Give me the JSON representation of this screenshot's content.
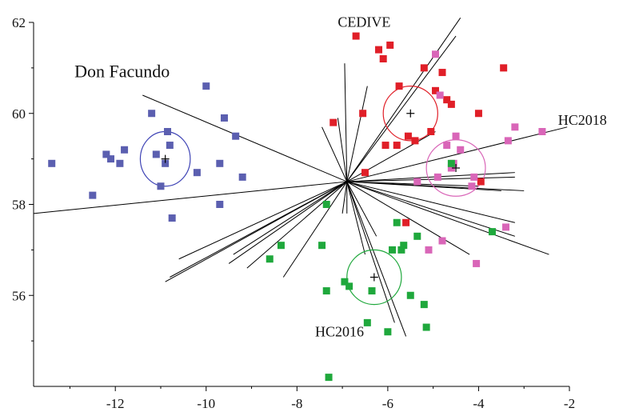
{
  "chart_data": {
    "type": "scatter",
    "title": "",
    "xlabel": "",
    "ylabel": "",
    "xlim": [
      -13.8,
      -2
    ],
    "ylim": [
      54,
      62
    ],
    "x_ticks": [
      -12,
      -10,
      -8,
      -6,
      -4,
      -2
    ],
    "y_ticks": [
      56,
      58,
      60,
      62
    ],
    "grid": false,
    "centroid": {
      "x": -6.9,
      "y": 58.5
    },
    "series": [
      {
        "label": "Don Facundo",
        "color": "#5b5fb0",
        "ellipse_color": "#3e43b5",
        "mean": {
          "x": -10.9,
          "y": 59.0
        },
        "radius": [
          0.55,
          0.6
        ],
        "label_pos": {
          "x": -12.9,
          "y": 60.8
        },
        "label_size": 22,
        "points": [
          [
            -13.4,
            58.9
          ],
          [
            -12.5,
            58.2
          ],
          [
            -12.2,
            59.1
          ],
          [
            -12.1,
            59.0
          ],
          [
            -11.9,
            58.9
          ],
          [
            -11.8,
            59.2
          ],
          [
            -11.2,
            60.0
          ],
          [
            -11.1,
            59.1
          ],
          [
            -11.0,
            58.4
          ],
          [
            -10.9,
            58.9
          ],
          [
            -10.85,
            59.6
          ],
          [
            -10.8,
            59.3
          ],
          [
            -10.75,
            57.7
          ],
          [
            -10.2,
            58.7
          ],
          [
            -10.0,
            60.6
          ],
          [
            -9.7,
            58.0
          ],
          [
            -9.7,
            58.9
          ],
          [
            -9.6,
            59.9
          ],
          [
            -9.35,
            59.5
          ],
          [
            -9.2,
            58.6
          ]
        ]
      },
      {
        "label": "CEDIVE",
        "color": "#e01f28",
        "ellipse_color": "#e01f28",
        "mean": {
          "x": -5.5,
          "y": 60.0
        },
        "radius": [
          0.6,
          0.6
        ],
        "label_pos": {
          "x": -7.1,
          "y": 61.9
        },
        "label_size": 18,
        "points": [
          [
            -7.2,
            59.8
          ],
          [
            -6.7,
            61.7
          ],
          [
            -6.55,
            60.0
          ],
          [
            -6.5,
            58.7
          ],
          [
            -6.2,
            61.4
          ],
          [
            -6.1,
            61.2
          ],
          [
            -6.05,
            59.3
          ],
          [
            -5.95,
            61.5
          ],
          [
            -5.8,
            59.3
          ],
          [
            -5.75,
            60.6
          ],
          [
            -5.55,
            59.5
          ],
          [
            -5.4,
            59.4
          ],
          [
            -5.2,
            61.0
          ],
          [
            -5.05,
            59.6
          ],
          [
            -4.95,
            60.5
          ],
          [
            -4.8,
            60.9
          ],
          [
            -4.7,
            60.3
          ],
          [
            -4.6,
            60.2
          ],
          [
            -4.0,
            60.0
          ],
          [
            -3.95,
            58.5
          ],
          [
            -3.45,
            61.0
          ],
          [
            -5.6,
            57.6
          ]
        ]
      },
      {
        "label": "HC2018",
        "color": "#d966b8",
        "ellipse_color": "#d966b8",
        "mean": {
          "x": -4.5,
          "y": 58.8
        },
        "radius": [
          0.65,
          0.62
        ],
        "label_pos": {
          "x": -2.25,
          "y": 59.75
        },
        "label_size": 18,
        "points": [
          [
            -5.35,
            58.5
          ],
          [
            -5.1,
            57.0
          ],
          [
            -4.95,
            61.3
          ],
          [
            -4.9,
            58.6
          ],
          [
            -4.85,
            60.4
          ],
          [
            -4.8,
            57.2
          ],
          [
            -4.7,
            59.3
          ],
          [
            -4.6,
            58.8
          ],
          [
            -4.55,
            58.9
          ],
          [
            -4.5,
            59.5
          ],
          [
            -4.4,
            59.2
          ],
          [
            -4.15,
            58.4
          ],
          [
            -4.1,
            58.6
          ],
          [
            -4.05,
            56.7
          ],
          [
            -3.4,
            57.5
          ],
          [
            -3.35,
            59.4
          ],
          [
            -3.2,
            59.7
          ],
          [
            -2.6,
            59.6
          ]
        ]
      },
      {
        "label": "HC2016",
        "color": "#1fa83c",
        "ellipse_color": "#1fa83c",
        "mean": {
          "x": -6.3,
          "y": 56.4
        },
        "radius": [
          0.6,
          0.6
        ],
        "label_pos": {
          "x": -7.6,
          "y": 55.1
        },
        "label_size": 18,
        "points": [
          [
            -8.6,
            56.8
          ],
          [
            -8.35,
            57.1
          ],
          [
            -7.45,
            57.1
          ],
          [
            -7.35,
            58.0
          ],
          [
            -7.35,
            56.1
          ],
          [
            -6.95,
            56.3
          ],
          [
            -6.85,
            56.2
          ],
          [
            -6.45,
            55.4
          ],
          [
            -6.35,
            56.1
          ],
          [
            -6.0,
            55.2
          ],
          [
            -5.9,
            57.0
          ],
          [
            -5.8,
            57.6
          ],
          [
            -5.7,
            57.0
          ],
          [
            -5.65,
            57.1
          ],
          [
            -5.5,
            56.0
          ],
          [
            -5.35,
            57.3
          ],
          [
            -5.2,
            55.8
          ],
          [
            -5.15,
            55.3
          ],
          [
            -3.7,
            57.4
          ],
          [
            -7.3,
            54.2
          ],
          [
            -4.6,
            58.9
          ]
        ]
      }
    ],
    "vectors": [
      [
        -13.8,
        57.8
      ],
      [
        -11.4,
        60.4
      ],
      [
        -10.9,
        56.3
      ],
      [
        -10.8,
        56.4
      ],
      [
        -10.6,
        56.8
      ],
      [
        -9.5,
        56.7
      ],
      [
        -9.4,
        56.9
      ],
      [
        -9.1,
        56.6
      ],
      [
        -8.3,
        56.4
      ],
      [
        -7.45,
        59.7
      ],
      [
        -7.1,
        59.9
      ],
      [
        -7.0,
        57.8
      ],
      [
        -6.9,
        57.8
      ],
      [
        -6.95,
        61.1
      ],
      [
        -6.45,
        60.6
      ],
      [
        -6.5,
        56.9
      ],
      [
        -6.25,
        57.3
      ],
      [
        -5.85,
        55.4
      ],
      [
        -5.6,
        55.1
      ],
      [
        -4.95,
        59.6
      ],
      [
        -4.5,
        61.7
      ],
      [
        -4.4,
        62.1
      ],
      [
        -4.2,
        56.9
      ],
      [
        -4.0,
        58.4
      ],
      [
        -3.5,
        58.3
      ],
      [
        -3.2,
        58.6
      ],
      [
        -3.2,
        58.7
      ],
      [
        -3.2,
        57.3
      ],
      [
        -3.2,
        57.6
      ],
      [
        -3.0,
        58.3
      ],
      [
        -2.45,
        56.9
      ],
      [
        -2.05,
        59.7
      ]
    ]
  }
}
